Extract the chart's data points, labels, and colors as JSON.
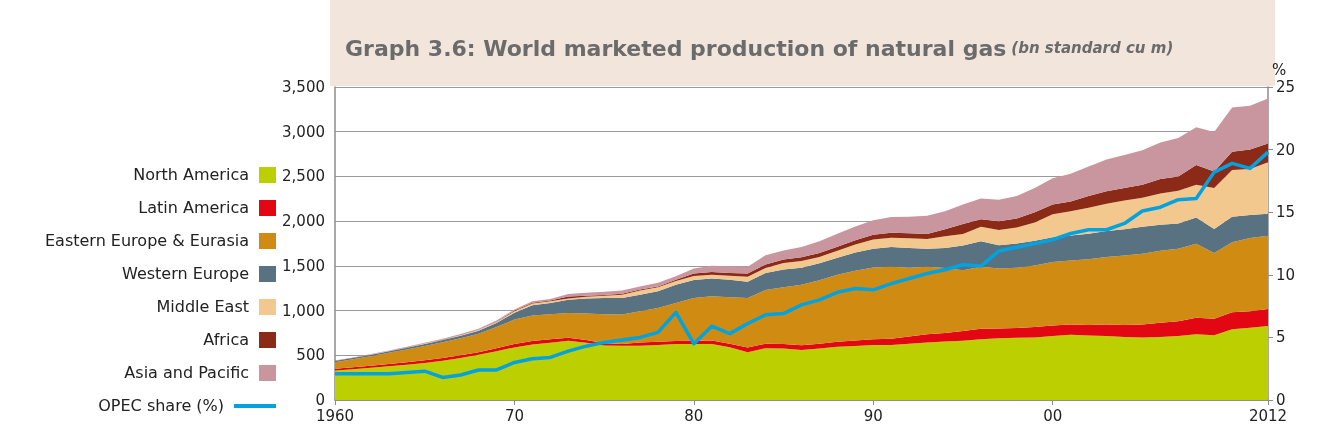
{
  "chart_data": {
    "type": "area",
    "stacked": true,
    "title": "Graph 3.6: World marketed production of natural gas",
    "subtitle": "(bn standard cu m)",
    "y2label": "%",
    "x": [
      1960,
      1961,
      1962,
      1963,
      1964,
      1965,
      1966,
      1967,
      1968,
      1969,
      1970,
      1971,
      1972,
      1973,
      1974,
      1975,
      1976,
      1977,
      1978,
      1979,
      1980,
      1981,
      1982,
      1983,
      1984,
      1985,
      1986,
      1987,
      1988,
      1989,
      1990,
      1991,
      1992,
      1993,
      1994,
      1995,
      1996,
      1997,
      1998,
      1999,
      2000,
      2001,
      2002,
      2003,
      2004,
      2005,
      2006,
      2007,
      2008,
      2009,
      2010,
      2011,
      2012
    ],
    "xlim": [
      1960,
      2012
    ],
    "xticks": [
      1960,
      {
        "value": 1970,
        "label": "70"
      },
      {
        "value": 1980,
        "label": "80"
      },
      {
        "value": 1990,
        "label": "90"
      },
      {
        "value": 2000,
        "label": "00"
      },
      2012
    ],
    "ylim": [
      0,
      3500
    ],
    "yticks": [
      0,
      500,
      {
        "value": 1000,
        "label": "1,000"
      },
      {
        "value": 1500,
        "label": "1,500"
      },
      {
        "value": 2000,
        "label": "2,000"
      },
      {
        "value": 2500,
        "label": "2,500"
      },
      {
        "value": 3000,
        "label": "3,000"
      },
      {
        "value": 3500,
        "label": "3,500"
      }
    ],
    "y2lim": [
      0,
      25
    ],
    "y2ticks": [
      0,
      5,
      10,
      15,
      20,
      25
    ],
    "grid": "y",
    "legend": "left",
    "series": [
      {
        "name": "North America",
        "color": "#bccf00",
        "values": [
          330,
          345,
          360,
          378,
          395,
          415,
          440,
          470,
          505,
          545,
          588,
          620,
          640,
          662,
          640,
          610,
          607,
          607,
          615,
          625,
          625,
          625,
          590,
          533,
          580,
          577,
          560,
          575,
          595,
          605,
          614,
          615,
          630,
          643,
          655,
          662,
          680,
          690,
          695,
          700,
          717,
          730,
          720,
          715,
          705,
          698,
          705,
          715,
          735,
          724,
          790,
          809,
          827
        ]
      },
      {
        "name": "Latin America",
        "color": "#e30613",
        "values": [
          19,
          21,
          23,
          25,
          28,
          30,
          30,
          30,
          30,
          35,
          37,
          40,
          40,
          33,
          30,
          25,
          18,
          36,
          37,
          35,
          37,
          40,
          40,
          55,
          50,
          48,
          52,
          55,
          55,
          60,
          66,
          70,
          80,
          92,
          95,
          110,
          118,
          110,
          110,
          115,
          117,
          115,
          120,
          130,
          135,
          147,
          160,
          165,
          184,
          184,
          191,
          184,
          191
        ]
      },
      {
        "name": "Eastern Europe & Eurasia",
        "color": "#d08c12",
        "values": [
          74,
          89,
          107,
          124,
          142,
          160,
          175,
          190,
          205,
          235,
          275,
          285,
          280,
          279,
          298,
          325,
          331,
          350,
          378,
          425,
          478,
          495,
          520,
          552,
          600,
          636,
          678,
          710,
          750,
          780,
          801,
          805,
          770,
          754,
          725,
          680,
          691,
          670,
          675,
          690,
          710,
          715,
          735,
          755,
          775,
          791,
          805,
          810,
          827,
          735,
          783,
          819,
          820
        ]
      },
      {
        "name": "Western Europe",
        "color": "#587282",
        "values": [
          12,
          14,
          15,
          17,
          19,
          22,
          25,
          28,
          35,
          45,
          75,
          115,
          125,
          147,
          167,
          180,
          184,
          183,
          185,
          205,
          202,
          200,
          195,
          183,
          190,
          198,
          190,
          190,
          190,
          205,
          210,
          220,
          220,
          202,
          225,
          276,
          287,
          260,
          270,
          275,
          276,
          280,
          285,
          290,
          295,
          301,
          290,
          285,
          294,
          268,
          284,
          258,
          246
        ]
      },
      {
        "name": "Middle East",
        "color": "#f2c88e",
        "values": [
          2,
          2,
          3,
          3,
          4,
          4,
          5,
          5,
          7,
          10,
          17,
          20,
          20,
          15,
          20,
          25,
          36,
          49,
          45,
          40,
          44,
          40,
          45,
          56,
          55,
          74,
          75,
          70,
          80,
          90,
          103,
          105,
          110,
          110,
          130,
          128,
          161,
          170,
          180,
          205,
          257,
          270,
          290,
          305,
          320,
          324,
          350,
          365,
          368,
          460,
          525,
          514,
          574
        ]
      },
      {
        "name": "Africa",
        "color": "#8b2a17",
        "values": [
          1,
          1,
          1,
          1,
          1,
          1,
          1,
          2,
          2,
          3,
          8,
          8,
          7,
          22,
          10,
          10,
          11,
          10,
          10,
          15,
          29,
          30,
          30,
          36,
          40,
          37,
          40,
          45,
          45,
          45,
          55,
          55,
          55,
          55,
          80,
          111,
          85,
          100,
          100,
          115,
          110,
          110,
          130,
          140,
          140,
          147,
          160,
          160,
          220,
          184,
          202,
          217,
          209
        ]
      },
      {
        "name": "Asia and Pacific",
        "color": "#c9959f",
        "values": [
          3,
          4,
          5,
          6,
          7,
          8,
          10,
          12,
          14,
          17,
          11,
          17,
          18,
          26,
          35,
          35,
          37,
          33,
          40,
          40,
          55,
          70,
          75,
          74,
          105,
          103,
          115,
          130,
          145,
          155,
          162,
          175,
          185,
          204,
          200,
          220,
          231,
          240,
          250,
          270,
          294,
          310,
          330,
          355,
          370,
          386,
          410,
          430,
          423,
          441,
          497,
          489,
          504
        ]
      },
      {
        "name": "OPEC share (%)",
        "type": "line",
        "axis": "y2",
        "color": "#00a3e0",
        "line_style": "solid",
        "marker": "none",
        "values": [
          2.1,
          2.1,
          2.1,
          2.1,
          2.2,
          2.3,
          1.8,
          2.0,
          2.4,
          2.4,
          3.0,
          3.3,
          3.4,
          3.9,
          4.3,
          4.6,
          4.8,
          5.0,
          5.4,
          7.0,
          4.5,
          5.9,
          5.3,
          6.1,
          6.8,
          6.9,
          7.6,
          8.0,
          8.6,
          8.9,
          8.8,
          9.3,
          9.7,
          10.1,
          10.4,
          10.8,
          10.7,
          11.9,
          12.2,
          12.5,
          12.8,
          13.3,
          13.6,
          13.6,
          14.1,
          15.1,
          15.4,
          16.0,
          16.1,
          18.2,
          18.9,
          18.5,
          19.8
        ]
      }
    ]
  }
}
